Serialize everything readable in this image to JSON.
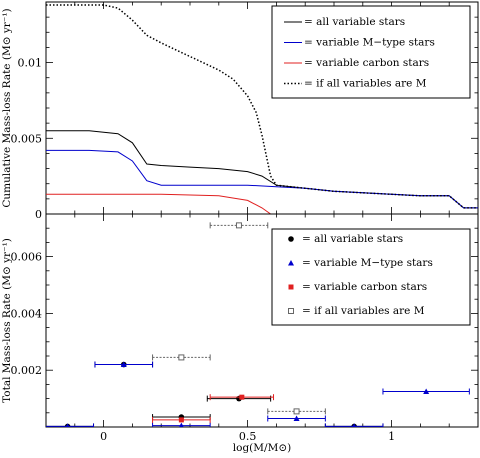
{
  "chart_data": [
    {
      "type": "line",
      "ylabel": "Cumulative  Mass-loss Rate  (M⊙ yr⁻¹)",
      "xlim": [
        -0.2,
        1.3
      ],
      "ylim": [
        0,
        0.014
      ],
      "y_ticks": [
        "0",
        "0.005",
        "0.01"
      ],
      "legend": "top-right",
      "series": [
        {
          "name": "= all variable stars",
          "color": "#000000",
          "dash": "solid",
          "x": [
            -0.2,
            -0.05,
            0.05,
            0.1,
            0.15,
            0.2,
            0.3,
            0.4,
            0.5,
            0.55,
            0.6,
            0.7,
            0.8,
            1.0,
            1.1,
            1.2,
            1.25,
            1.3
          ],
          "y": [
            0.0055,
            0.0055,
            0.0053,
            0.0047,
            0.0033,
            0.0032,
            0.0031,
            0.003,
            0.0028,
            0.0025,
            0.0019,
            0.0017,
            0.0015,
            0.0013,
            0.0012,
            0.0012,
            0.0004,
            0.0004
          ]
        },
        {
          "name": "= variable M−type stars",
          "color": "#0000cc",
          "dash": "solid",
          "x": [
            -0.2,
            -0.05,
            0.05,
            0.1,
            0.15,
            0.2,
            0.5,
            0.6,
            0.7,
            0.8,
            1.0,
            1.1,
            1.2,
            1.25,
            1.3
          ],
          "y": [
            0.0042,
            0.0042,
            0.0041,
            0.0035,
            0.0022,
            0.0019,
            0.0019,
            0.0018,
            0.0017,
            0.0015,
            0.0013,
            0.0012,
            0.0012,
            0.0004,
            0.0004
          ]
        },
        {
          "name": "= variable carbon stars",
          "color": "#e02020",
          "dash": "solid",
          "x": [
            -0.2,
            0.2,
            0.4,
            0.5,
            0.55,
            0.58
          ],
          "y": [
            0.0013,
            0.0013,
            0.0012,
            0.0009,
            0.0004,
            0.0
          ]
        },
        {
          "name": "= if all variables are M",
          "color": "#000000",
          "dash": "dotted",
          "x": [
            -0.2,
            0.0,
            0.05,
            0.1,
            0.15,
            0.2,
            0.3,
            0.4,
            0.45,
            0.5,
            0.53,
            0.55,
            0.58,
            0.6,
            0.7,
            0.8,
            1.0,
            1.1,
            1.2,
            1.25,
            1.3
          ],
          "y": [
            0.0138,
            0.0138,
            0.0136,
            0.0128,
            0.0118,
            0.0113,
            0.0104,
            0.0095,
            0.0089,
            0.0078,
            0.0067,
            0.0052,
            0.0025,
            0.0019,
            0.0017,
            0.0015,
            0.0013,
            0.0012,
            0.0012,
            0.0004,
            0.0004
          ]
        }
      ]
    },
    {
      "type": "scatter",
      "xlabel": "log(M/M⊙)",
      "ylabel": "Total  Mass-loss Rate  (M⊙ yr⁻¹)",
      "xlim": [
        -0.2,
        1.3
      ],
      "ylim": [
        0,
        0.0075
      ],
      "x_ticks": [
        "0",
        "0.5",
        "1"
      ],
      "y_ticks": [
        "0.002",
        "0.004",
        "0.006"
      ],
      "legend": "right",
      "series": [
        {
          "name": "= all variable stars",
          "color": "#000000",
          "marker": "circle",
          "points": [
            {
              "x": -0.125,
              "xerr": 0.09,
              "y": 2e-05
            },
            {
              "x": 0.07,
              "xerr": 0.1,
              "y": 0.0022
            },
            {
              "x": 0.27,
              "xerr": 0.1,
              "y": 0.00035
            },
            {
              "x": 0.47,
              "xerr": 0.11,
              "y": 0.001
            },
            {
              "x": 0.87,
              "xerr": 0.1,
              "y": 2e-05
            }
          ]
        },
        {
          "name": "= variable M−type stars",
          "color": "#0000cc",
          "marker": "triangle",
          "points": [
            {
              "x": -0.125,
              "xerr": 0.09,
              "y": 2e-05
            },
            {
              "x": 0.07,
              "xerr": 0.1,
              "y": 0.0022
            },
            {
              "x": 0.27,
              "xerr": 0.1,
              "y": 5e-05
            },
            {
              "x": 0.67,
              "xerr": 0.1,
              "y": 0.0003
            },
            {
              "x": 0.87,
              "xerr": 0.1,
              "y": 2e-05
            },
            {
              "x": 1.12,
              "xerr": 0.15,
              "y": 0.00125
            }
          ]
        },
        {
          "name": "= variable carbon stars",
          "color": "#e02020",
          "marker": "square",
          "points": [
            {
              "x": 0.27,
              "xerr": 0.1,
              "y": 0.00025
            },
            {
              "x": 0.48,
              "xerr": 0.11,
              "y": 0.00105
            }
          ]
        },
        {
          "name": "= if all variables are M",
          "color": "#666666",
          "marker": "open-square",
          "points": [
            {
              "x": 0.27,
              "xerr": 0.1,
              "y": 0.00245
            },
            {
              "x": 0.47,
              "xerr": 0.1,
              "y": 0.0071
            },
            {
              "x": 0.67,
              "xerr": 0.1,
              "y": 0.00055
            }
          ]
        }
      ]
    }
  ]
}
